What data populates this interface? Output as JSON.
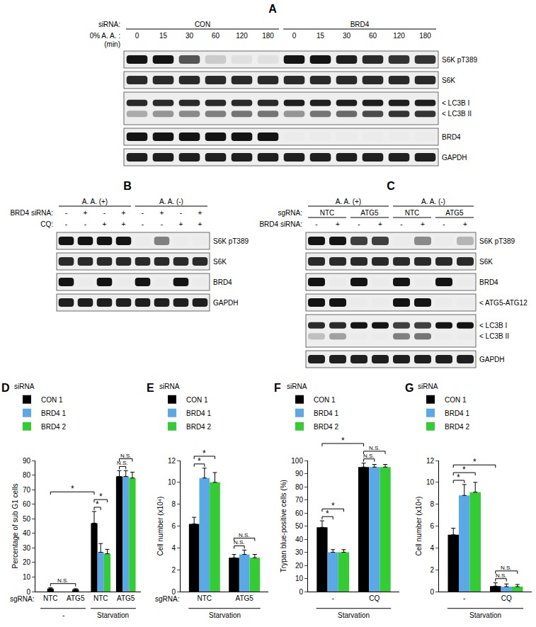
{
  "panels": [
    {
      "letter": "A",
      "lanes": 12,
      "header": [
        {
          "label": "siRNA:",
          "groups": [
            {
              "text": "CON",
              "span": 6
            },
            {
              "text": "BRD4",
              "span": 6
            }
          ]
        },
        {
          "label": "0% A. A. :",
          "sublabel": "(min)",
          "lanes": [
            "0",
            "15",
            "30",
            "60",
            "120",
            "180",
            "0",
            "15",
            "30",
            "60",
            "120",
            "180"
          ]
        }
      ],
      "rows": [
        {
          "labels": [
            "S6K pT389"
          ],
          "bands": [
            [
              1,
              1,
              0.7,
              0.15,
              0.05,
              0.05,
              1,
              1,
              0.95,
              0.9,
              0.85,
              0.85
            ]
          ]
        },
        {
          "labels": [
            "S6K"
          ],
          "bands": [
            [
              0.9,
              0.9,
              0.9,
              0.9,
              0.9,
              0.9,
              0.9,
              0.9,
              0.9,
              0.9,
              0.9,
              0.9
            ]
          ]
        },
        {
          "labels": [
            "< LC3B I",
            "< LC3B II"
          ],
          "bands": [
            [
              0.9,
              0.9,
              0.9,
              0.9,
              0.9,
              0.9,
              0.95,
              0.95,
              0.95,
              0.95,
              0.95,
              0.95
            ],
            [
              0.3,
              0.4,
              0.45,
              0.5,
              0.55,
              0.55,
              0.4,
              0.55,
              0.6,
              0.75,
              0.85,
              0.85
            ]
          ]
        },
        {
          "labels": [
            "BRD4"
          ],
          "bands": [
            [
              1,
              1,
              1,
              1,
              1,
              1,
              0,
              0,
              0,
              0,
              0,
              0
            ]
          ]
        },
        {
          "labels": [
            "GAPDH"
          ],
          "bands": [
            [
              0.95,
              0.95,
              0.95,
              0.95,
              0.95,
              0.95,
              0.95,
              0.95,
              0.95,
              0.95,
              0.95,
              0.95
            ]
          ]
        }
      ]
    },
    {
      "letter": "B",
      "lanes": 8,
      "header": [
        {
          "groups": [
            {
              "text": "A. A. (+)",
              "span": 4
            },
            {
              "text": "A. A. (-)",
              "span": 4
            }
          ]
        },
        {
          "label": "BRD4 siRNA:",
          "lanes": [
            "-",
            "+",
            "-",
            "+",
            "-",
            "+",
            "-",
            "+"
          ]
        },
        {
          "label": "CQ:",
          "lanes": [
            "-",
            "-",
            "+",
            "+",
            "-",
            "-",
            "+",
            "+"
          ]
        }
      ],
      "rows": [
        {
          "labels": [
            "S6K pT389"
          ],
          "bands": [
            [
              1,
              1,
              1,
              1,
              0,
              0.5,
              0,
              0
            ]
          ]
        },
        {
          "labels": [
            "S6K"
          ],
          "bands": [
            [
              0.9,
              0.9,
              0.9,
              0.9,
              0.9,
              0.9,
              0.9,
              0.9
            ]
          ]
        },
        {
          "labels": [
            "BRD4"
          ],
          "bands": [
            [
              1,
              0,
              1,
              0,
              1,
              0,
              1,
              0
            ]
          ]
        },
        {
          "labels": [
            "GAPDH"
          ],
          "bands": [
            [
              0.95,
              0.95,
              0.95,
              0.95,
              0.95,
              0.95,
              0.95,
              0.95
            ]
          ]
        }
      ]
    },
    {
      "letter": "C",
      "lanes": 8,
      "header": [
        {
          "groups": [
            {
              "text": "A. A. (+)",
              "span": 4
            },
            {
              "text": "A. A. (-)",
              "span": 4
            }
          ]
        },
        {
          "label": "sgRNA:",
          "groups": [
            {
              "text": "NTC",
              "span": 2
            },
            {
              "text": "ATG5",
              "span": 2
            },
            {
              "text": "NTC",
              "span": 2
            },
            {
              "text": "ATG5",
              "span": 2
            }
          ]
        },
        {
          "label": "BRD4 siRNA:",
          "lanes": [
            "-",
            "+",
            "-",
            "+",
            "-",
            "+",
            "-",
            "+"
          ]
        }
      ],
      "rows": [
        {
          "labels": [
            "S6K pT389"
          ],
          "bands": [
            [
              1,
              1,
              0.8,
              0.8,
              0,
              0.45,
              0,
              0.25
            ]
          ]
        },
        {
          "labels": [
            "S6K"
          ],
          "bands": [
            [
              0.9,
              0.9,
              0.9,
              0.9,
              0.9,
              0.9,
              0.9,
              0.9
            ]
          ]
        },
        {
          "labels": [
            "BRD4"
          ],
          "bands": [
            [
              1,
              0,
              1,
              0,
              1,
              0,
              1,
              0
            ]
          ]
        },
        {
          "labels": [
            "< ATG5-ATG12"
          ],
          "bands": [
            [
              1,
              1,
              0,
              0,
              1,
              1,
              0,
              0
            ]
          ]
        },
        {
          "labels": [
            "< LC3B I",
            "< LC3B II"
          ],
          "bands": [
            [
              0.9,
              0.9,
              1,
              1,
              0.8,
              0.8,
              1,
              1
            ],
            [
              0.2,
              0.35,
              0,
              0,
              0.5,
              0.55,
              0,
              0
            ]
          ]
        },
        {
          "labels": [
            "GAPDH"
          ],
          "bands": [
            [
              0.95,
              0.95,
              0.95,
              0.95,
              0.95,
              0.95,
              0.95,
              0.95
            ]
          ]
        }
      ]
    }
  ],
  "chart_data": [
    {
      "type": "bar",
      "panel": "D",
      "ylabel": "Percentage of sub G1 cells",
      "ylim": [
        0,
        90
      ],
      "yticks": [
        0,
        10,
        20,
        30,
        40,
        50,
        60,
        70,
        80,
        90
      ],
      "legend_title": "siRNA",
      "category_label": "sgRNA:",
      "categories": [
        "NTC",
        "ATG5",
        "NTC",
        "ATG5"
      ],
      "category_groups": [
        {
          "label": "-",
          "from": 0,
          "to": 1
        },
        {
          "label": "Starvation",
          "from": 2,
          "to": 3
        }
      ],
      "series": [
        {
          "name": "CON 1",
          "color": "#000000",
          "values": [
            2,
            1.5,
            47,
            79
          ],
          "error": [
            0.6,
            0.5,
            8,
            4
          ]
        },
        {
          "name": "BRD4 1",
          "color": "#5aa9e6",
          "values": [
            null,
            null,
            27,
            79
          ],
          "error": [
            null,
            null,
            6,
            4
          ]
        },
        {
          "name": "BRD4 2",
          "color": "#33cc33",
          "values": [
            null,
            null,
            26,
            78
          ],
          "error": [
            null,
            null,
            3,
            4
          ]
        }
      ],
      "comparisons": [
        {
          "text": "N.S.",
          "from": [
            0,
            0
          ],
          "to": [
            1,
            0
          ]
        },
        {
          "text": "*",
          "from": [
            2,
            0
          ],
          "to": [
            2,
            1
          ]
        },
        {
          "text": "*",
          "from": [
            2,
            0
          ],
          "to": [
            2,
            2
          ]
        },
        {
          "text": "N.S.",
          "from": [
            3,
            0
          ],
          "to": [
            3,
            1
          ]
        },
        {
          "text": "N.S.",
          "from": [
            3,
            0
          ],
          "to": [
            3,
            2
          ]
        },
        {
          "text": "*",
          "from": [
            0,
            0
          ],
          "to": [
            2,
            0
          ]
        }
      ]
    },
    {
      "type": "bar",
      "panel": "E",
      "ylabel": "Cell number (x10⁴)",
      "ylim": [
        0,
        12
      ],
      "yticks": [
        0,
        2,
        4,
        6,
        8,
        10,
        12
      ],
      "legend_title": "siRNA",
      "category_label": "sgRNA:",
      "categories": [
        "NTC",
        "ATG5"
      ],
      "category_groups": [
        {
          "label": "Starvation",
          "from": 0,
          "to": 1
        }
      ],
      "series": [
        {
          "name": "CON 1",
          "color": "#000000",
          "values": [
            6.2,
            3.1
          ],
          "error": [
            0.6,
            0.3
          ]
        },
        {
          "name": "BRD4 1",
          "color": "#5aa9e6",
          "values": [
            10.4,
            3.4
          ],
          "error": [
            0.9,
            0.4
          ]
        },
        {
          "name": "BRD4 2",
          "color": "#33cc33",
          "values": [
            10.0,
            3.1
          ],
          "error": [
            0.9,
            0.3
          ]
        }
      ],
      "comparisons": [
        {
          "text": "*",
          "from": [
            0,
            0
          ],
          "to": [
            0,
            1
          ]
        },
        {
          "text": "*",
          "from": [
            0,
            0
          ],
          "to": [
            0,
            2
          ]
        },
        {
          "text": "N.S.",
          "from": [
            1,
            0
          ],
          "to": [
            1,
            1
          ]
        },
        {
          "text": "N.S.",
          "from": [
            1,
            0
          ],
          "to": [
            1,
            2
          ]
        }
      ]
    },
    {
      "type": "bar",
      "panel": "F",
      "ylabel": "Trypan blue-positive cells (%)",
      "ylim": [
        0,
        100
      ],
      "yticks": [
        0,
        10,
        20,
        30,
        40,
        50,
        60,
        70,
        80,
        90,
        100
      ],
      "legend_title": "siRNA",
      "categories": [
        "-",
        "CQ"
      ],
      "category_groups": [
        {
          "label": "Starvation",
          "from": 0,
          "to": 1
        }
      ],
      "series": [
        {
          "name": "CON 1",
          "color": "#000000",
          "values": [
            49,
            95
          ],
          "error": [
            5,
            3
          ]
        },
        {
          "name": "BRD4 1",
          "color": "#5aa9e6",
          "values": [
            30,
            95
          ],
          "error": [
            2,
            2
          ]
        },
        {
          "name": "BRD4 2",
          "color": "#33cc33",
          "values": [
            30,
            95
          ],
          "error": [
            2,
            2
          ]
        }
      ],
      "comparisons": [
        {
          "text": "*",
          "from": [
            0,
            0
          ],
          "to": [
            0,
            1
          ]
        },
        {
          "text": "*",
          "from": [
            0,
            0
          ],
          "to": [
            0,
            2
          ]
        },
        {
          "text": "N.S.",
          "from": [
            1,
            0
          ],
          "to": [
            1,
            1
          ]
        },
        {
          "text": "N.S.",
          "from": [
            1,
            0
          ],
          "to": [
            1,
            2
          ]
        },
        {
          "text": "*",
          "from": [
            0,
            0
          ],
          "to": [
            1,
            0
          ]
        }
      ]
    },
    {
      "type": "bar",
      "panel": "G",
      "ylabel": "Cell number (x10⁴)",
      "ylim": [
        0,
        12
      ],
      "yticks": [
        0,
        2,
        4,
        6,
        8,
        10,
        12
      ],
      "legend_title": "siRNA",
      "categories": [
        "-",
        "CQ"
      ],
      "category_groups": [
        {
          "label": "Starvation",
          "from": 0,
          "to": 1
        }
      ],
      "series": [
        {
          "name": "CON 1",
          "color": "#000000",
          "values": [
            5.2,
            0.5
          ],
          "error": [
            0.6,
            0.3
          ]
        },
        {
          "name": "BRD4 1",
          "color": "#5aa9e6",
          "values": [
            8.8,
            0.45
          ],
          "error": [
            1.0,
            0.25
          ]
        },
        {
          "name": "BRD4 2",
          "color": "#33cc33",
          "values": [
            9.1,
            0.45
          ],
          "error": [
            0.9,
            0.2
          ]
        }
      ],
      "comparisons": [
        {
          "text": "*",
          "from": [
            0,
            0
          ],
          "to": [
            0,
            1
          ]
        },
        {
          "text": "*",
          "from": [
            0,
            0
          ],
          "to": [
            0,
            2
          ]
        },
        {
          "text": "N.S.",
          "from": [
            1,
            0
          ],
          "to": [
            1,
            1
          ]
        },
        {
          "text": "N.S.",
          "from": [
            1,
            0
          ],
          "to": [
            1,
            2
          ]
        },
        {
          "text": "*",
          "from": [
            0,
            0
          ],
          "to": [
            1,
            0
          ]
        }
      ]
    }
  ]
}
